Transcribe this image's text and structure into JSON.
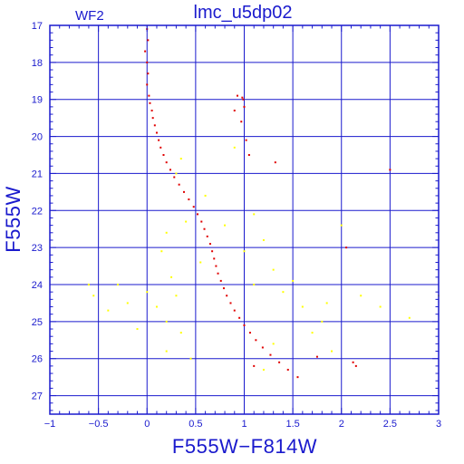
{
  "colors": {
    "frame": "#1a1acd",
    "grid": "#1a1acd",
    "text": "#1a1acd",
    "series_red": "#e00000",
    "series_yellow": "#ffff00",
    "background": "#ffffff"
  },
  "chart_data": {
    "type": "scatter",
    "title": "lmc_u5dp02",
    "field_label": "WF2",
    "xlabel": "F555W−F814W",
    "ylabel": "F555W",
    "xlim": [
      -1,
      3
    ],
    "ylim": [
      27.5,
      17
    ],
    "y_inverted": true,
    "grid": true,
    "x_ticks": [
      -1,
      -0.5,
      0,
      0.5,
      1,
      1.5,
      2,
      2.5,
      3
    ],
    "x_tick_labels": [
      "−1",
      "−0.5",
      "0",
      "0.5",
      "1",
      "1.5",
      "2",
      "2.5",
      "3"
    ],
    "y_ticks": [
      17,
      18,
      19,
      20,
      21,
      22,
      23,
      24,
      25,
      26,
      27
    ],
    "y_tick_labels": [
      "17",
      "18",
      "19",
      "20",
      "21",
      "22",
      "23",
      "24",
      "25",
      "26",
      "27"
    ],
    "series": [
      {
        "color": "#e00000",
        "points": [
          [
            0.0,
            17.1
          ],
          [
            0.01,
            17.4
          ],
          [
            -0.02,
            17.7
          ],
          [
            0.0,
            18.0
          ],
          [
            0.01,
            18.3
          ],
          [
            0.0,
            18.6
          ],
          [
            0.02,
            18.9
          ],
          [
            0.03,
            19.1
          ],
          [
            0.05,
            19.3
          ],
          [
            0.06,
            19.5
          ],
          [
            0.08,
            19.7
          ],
          [
            0.1,
            19.9
          ],
          [
            0.12,
            20.1
          ],
          [
            0.14,
            20.3
          ],
          [
            0.17,
            20.5
          ],
          [
            0.2,
            20.7
          ],
          [
            0.24,
            20.9
          ],
          [
            0.28,
            21.1
          ],
          [
            0.33,
            21.3
          ],
          [
            0.38,
            21.5
          ],
          [
            0.43,
            21.7
          ],
          [
            0.48,
            21.9
          ],
          [
            0.52,
            22.1
          ],
          [
            0.56,
            22.3
          ],
          [
            0.59,
            22.5
          ],
          [
            0.62,
            22.7
          ],
          [
            0.65,
            22.9
          ],
          [
            0.67,
            23.1
          ],
          [
            0.69,
            23.3
          ],
          [
            0.71,
            23.5
          ],
          [
            0.73,
            23.7
          ],
          [
            0.76,
            23.9
          ],
          [
            0.79,
            24.1
          ],
          [
            0.82,
            24.3
          ],
          [
            0.86,
            24.5
          ],
          [
            0.9,
            24.7
          ],
          [
            0.95,
            24.9
          ],
          [
            1.0,
            25.1
          ],
          [
            1.06,
            25.3
          ],
          [
            1.12,
            25.5
          ],
          [
            1.19,
            25.7
          ],
          [
            1.27,
            25.9
          ],
          [
            1.36,
            26.1
          ],
          [
            1.45,
            26.3
          ],
          [
            1.55,
            26.5
          ],
          [
            0.93,
            18.9
          ],
          [
            0.98,
            18.95
          ],
          [
            0.99,
            19.0
          ],
          [
            1.0,
            19.2
          ],
          [
            0.97,
            19.6
          ],
          [
            1.02,
            20.1
          ],
          [
            1.05,
            20.5
          ],
          [
            0.9,
            19.3
          ],
          [
            1.32,
            20.7
          ],
          [
            2.05,
            23.0
          ],
          [
            2.5,
            20.9
          ],
          [
            2.12,
            26.1
          ],
          [
            2.15,
            26.2
          ],
          [
            1.1,
            26.2
          ],
          [
            1.75,
            25.95
          ]
        ]
      },
      {
        "color": "#ffff00",
        "points": [
          [
            -0.6,
            24.0
          ],
          [
            -0.55,
            24.3
          ],
          [
            -0.4,
            24.7
          ],
          [
            -0.2,
            24.5
          ],
          [
            -0.1,
            25.2
          ],
          [
            0.1,
            24.6
          ],
          [
            0.2,
            25.0
          ],
          [
            0.3,
            24.3
          ],
          [
            0.35,
            25.3
          ],
          [
            0.45,
            26.0
          ],
          [
            0.2,
            25.8
          ],
          [
            0.25,
            23.8
          ],
          [
            0.15,
            23.1
          ],
          [
            0.2,
            22.6
          ],
          [
            0.3,
            21.0
          ],
          [
            0.35,
            20.6
          ],
          [
            0.4,
            22.3
          ],
          [
            0.55,
            23.4
          ],
          [
            1.1,
            22.1
          ],
          [
            1.2,
            22.8
          ],
          [
            1.4,
            24.2
          ],
          [
            1.6,
            24.6
          ],
          [
            1.8,
            25.0
          ],
          [
            2.2,
            24.3
          ],
          [
            2.4,
            24.6
          ],
          [
            2.7,
            24.9
          ],
          [
            3.0,
            24.3
          ],
          [
            1.5,
            23.9
          ],
          [
            1.3,
            25.6
          ],
          [
            1.7,
            25.3
          ],
          [
            1.9,
            25.8
          ],
          [
            1.2,
            26.3
          ],
          [
            0.0,
            24.2
          ],
          [
            -0.3,
            24.0
          ],
          [
            0.6,
            21.6
          ],
          [
            0.8,
            22.4
          ],
          [
            1.0,
            23.1
          ],
          [
            1.1,
            24.0
          ],
          [
            1.3,
            23.6
          ],
          [
            2.0,
            22.4
          ],
          [
            1.85,
            24.5
          ],
          [
            0.9,
            20.3
          ]
        ]
      }
    ]
  }
}
